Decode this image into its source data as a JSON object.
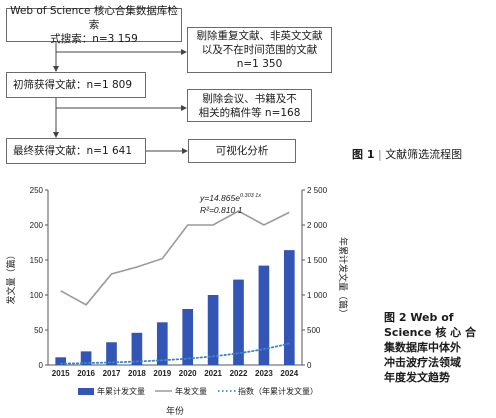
{
  "figure1": {
    "box1_line1": "Web of Science 核心合集数据库检索",
    "box1_line2": "式搜索：n=3 159",
    "box2_line1": "剔除重复文献、非英文文献",
    "box2_line2": "以及不在时间范围的文献",
    "box2_line3": "n=1 350",
    "box3": "初筛获得文献：n=1 809",
    "box4_line1": "剔除会议、书籍及不",
    "box4_line2": "相关的稿件等 n=168",
    "box5": "最终获得文献：n=1 641",
    "box6": "可视化分析",
    "caption_num": "图 1",
    "caption_text": "文献筛选流程图"
  },
  "figure2": {
    "caption_lines": [
      "图  2  Web of",
      "Science 核 心 合",
      "集数据库中体外",
      "冲击波疗法领域",
      "年度发文趋势"
    ],
    "equation": "y=14.865e",
    "equation_exp": "0.303 1x",
    "r2": "R²=0.810 1",
    "xlabel": "年份",
    "ylabel_left": "发文量（篇）",
    "ylabel_right": "年累计发文量（篇）",
    "legend": {
      "bar": "年累计发文量",
      "line": "年发文量",
      "trend": "指数（年累计发文量）"
    }
  },
  "chart_data": {
    "type": "bar",
    "categories": [
      "2015",
      "2016",
      "2017",
      "2018",
      "2019",
      "2020",
      "2021",
      "2022",
      "2023",
      "2024"
    ],
    "series": [
      {
        "name": "年累计发文量",
        "type": "bar",
        "axis": "right",
        "values": [
          110,
          195,
          325,
          460,
          610,
          800,
          1000,
          1220,
          1420,
          1641
        ]
      },
      {
        "name": "年发文量",
        "type": "line",
        "axis": "left",
        "values": [
          106,
          86,
          130,
          140,
          152,
          200,
          200,
          220,
          200,
          218
        ]
      },
      {
        "name": "指数（年累计发文量）",
        "type": "trend",
        "axis": "right",
        "formula": "14.865*exp(0.3031*x)"
      }
    ],
    "left_axis": {
      "ylim": [
        0,
        250
      ],
      "ticks": [
        "0",
        "50",
        "100",
        "150",
        "200",
        "250"
      ]
    },
    "right_axis": {
      "ylim": [
        0,
        2500
      ],
      "ticks": [
        "0",
        "500",
        "1 000",
        "1 500",
        "2 000",
        "2 500"
      ]
    },
    "colors": {
      "bar": "#3355b5",
      "line": "#9a9a9a",
      "trend": "#3b86c8"
    },
    "legend_position": "bottom",
    "grid": false
  }
}
